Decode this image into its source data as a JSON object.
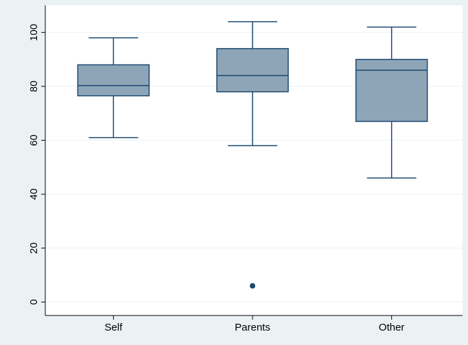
{
  "chart_data": {
    "type": "box",
    "title": "",
    "xlabel": "",
    "ylabel": "",
    "ylim": [
      -5,
      110
    ],
    "yticks": [
      0,
      20,
      40,
      60,
      80,
      100
    ],
    "grid": true,
    "legend": "none",
    "categories": [
      "Self",
      "Parents",
      "Other"
    ],
    "boxes": [
      {
        "category": "Self",
        "whisker_low": 61,
        "q1": 76.5,
        "median": 80.3,
        "q3": 88,
        "whisker_high": 98,
        "outliers": []
      },
      {
        "category": "Parents",
        "whisker_low": 58,
        "q1": 78,
        "median": 84,
        "q3": 94,
        "whisker_high": 104,
        "outliers": [
          6
        ]
      },
      {
        "category": "Other",
        "whisker_low": 46,
        "q1": 67,
        "median": 86,
        "q3": 90,
        "whisker_high": 102,
        "outliers": []
      }
    ],
    "colors": {
      "background": "#eaf2f3",
      "plot_background": "#ffffff",
      "box_fill": "#8ea5b8",
      "box_stroke": "#1a476f",
      "grid": "#eaf2f3",
      "axis": "#000000"
    }
  }
}
